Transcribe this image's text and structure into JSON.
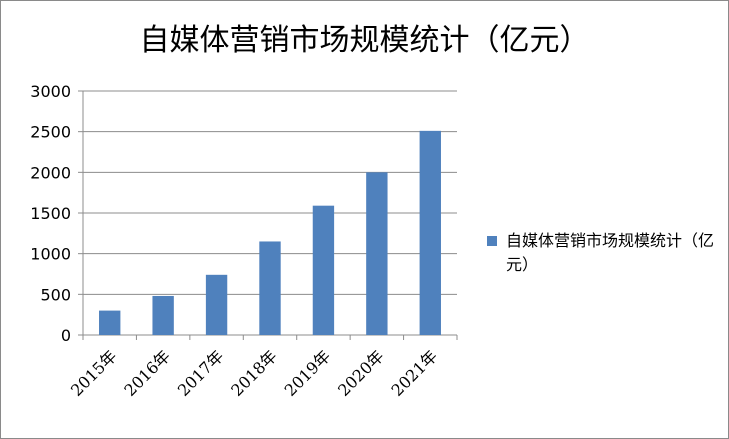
{
  "chart_data": {
    "type": "bar",
    "title": "自媒体营销市场规模统计（亿元）",
    "categories": [
      "2015年",
      "2016年",
      "2017年",
      "2018年",
      "2019年",
      "2020年",
      "2021年"
    ],
    "series": [
      {
        "name": "自媒体营销市场规模统计（亿元）",
        "values": [
          300,
          480,
          740,
          1150,
          1590,
          2000,
          2510
        ],
        "color": "#4f81bd"
      }
    ],
    "yticks": [
      "0",
      "500",
      "1000",
      "1500",
      "2000",
      "2500",
      "3000"
    ],
    "ylim": [
      0,
      3000
    ],
    "xlabel": "",
    "ylabel": "",
    "grid": true,
    "legend": "right"
  }
}
